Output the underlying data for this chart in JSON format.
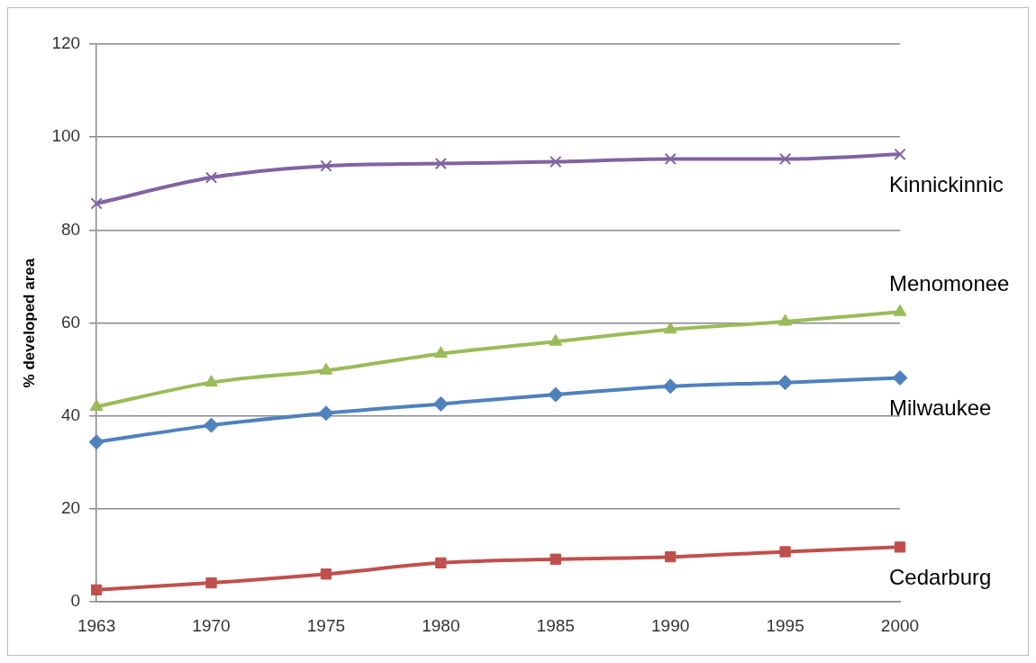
{
  "chart_data": {
    "type": "line",
    "ylabel": "% developed area",
    "categories": [
      "1963",
      "1970",
      "1975",
      "1980",
      "1985",
      "1990",
      "1995",
      "2000"
    ],
    "series": [
      {
        "name": "Kinnickinnic",
        "color": "#8064a2",
        "marker": "cross",
        "values": [
          85.7,
          91.3,
          93.8,
          94.3,
          94.7,
          95.3,
          95.3,
          96.3
        ]
      },
      {
        "name": "Menomonee",
        "color": "#9bbb59",
        "marker": "triangle",
        "values": [
          42,
          47.2,
          49.8,
          53.4,
          56,
          58.6,
          60.3,
          62.4
        ]
      },
      {
        "name": "Milwaukee",
        "color": "#4f81bd",
        "marker": "diamond",
        "values": [
          34.4,
          38,
          40.6,
          42.6,
          44.6,
          46.4,
          47.2,
          48.2
        ]
      },
      {
        "name": "Cedarburg",
        "color": "#c0504d",
        "marker": "square",
        "values": [
          2.6,
          4.1,
          6,
          8.4,
          9.2,
          9.7,
          10.8,
          11.8
        ]
      }
    ],
    "ylim": [
      0,
      120
    ],
    "yticks": [
      0,
      20,
      40,
      60,
      80,
      100,
      120
    ],
    "grid": "y",
    "legend": false
  }
}
